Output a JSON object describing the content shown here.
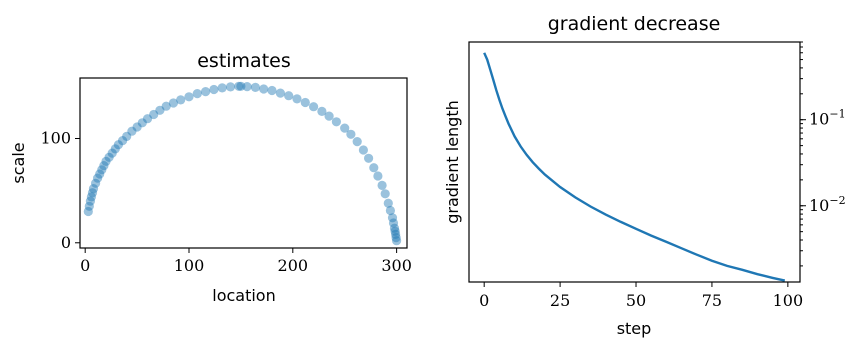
{
  "chart_data": [
    {
      "type": "scatter",
      "title": "estimates",
      "xlabel": "location",
      "ylabel": "scale",
      "xlim": [
        -5,
        310
      ],
      "ylim": [
        -5,
        158
      ],
      "x_ticks": [
        0,
        100,
        200,
        300
      ],
      "x_tick_labels": [
        "0",
        "100",
        "200",
        "300"
      ],
      "y_ticks": [
        0,
        100
      ],
      "y_tick_labels": [
        "0",
        "100"
      ],
      "color": "#1f77b4",
      "marker_alpha": 0.45,
      "grid": false,
      "points_note_free": true,
      "x": [
        3,
        4,
        5,
        6,
        7,
        8,
        10,
        12,
        14,
        16,
        18,
        20,
        23,
        26,
        29,
        32,
        36,
        40,
        45,
        50,
        55,
        60,
        66,
        72,
        78,
        85,
        92,
        100,
        108,
        116,
        124,
        132,
        140,
        148,
        150,
        156,
        164,
        172,
        180,
        188,
        196,
        204,
        212,
        220,
        228,
        235,
        242,
        250,
        256,
        262,
        268,
        273,
        278,
        282,
        286,
        289,
        292,
        294,
        296,
        297,
        298,
        298.5,
        299,
        299.5,
        300
      ],
      "y": [
        30,
        35,
        40,
        44,
        48,
        52,
        57,
        62,
        66,
        70,
        74,
        78,
        82,
        86,
        90,
        94,
        98,
        102,
        107,
        111,
        115,
        119,
        123,
        127,
        131,
        134,
        137,
        140,
        143,
        145,
        147,
        148.5,
        149.5,
        150,
        150,
        149.8,
        149,
        147.5,
        146,
        143.5,
        141,
        138,
        134.5,
        130.5,
        126,
        121.5,
        116,
        110,
        104,
        97,
        89,
        81,
        72,
        64,
        55,
        47,
        38,
        31,
        24,
        19,
        14,
        11,
        8,
        5,
        2
      ]
    },
    {
      "type": "line",
      "title": "gradient decrease",
      "xlabel": "step",
      "ylabel": "gradient length",
      "y_scale": "log",
      "y_axis_side": "right",
      "xlim": [
        -5,
        104
      ],
      "ylim": [
        0.0013,
        0.8
      ],
      "x_ticks": [
        0,
        25,
        50,
        75,
        100
      ],
      "x_tick_labels": [
        "0",
        "25",
        "50",
        "75",
        "100"
      ],
      "y_major_ticks": [
        0.1,
        0.01
      ],
      "y_tick_labels": [
        "10",
        "10"
      ],
      "y_tick_exponents": [
        "−1",
        "−2"
      ],
      "color": "#1f77b4",
      "grid": false,
      "x": [
        0,
        1,
        2,
        3,
        4,
        5,
        6,
        7,
        8,
        10,
        12,
        14,
        16,
        18,
        20,
        25,
        30,
        35,
        40,
        45,
        50,
        55,
        60,
        65,
        70,
        75,
        80,
        85,
        90,
        95,
        99
      ],
      "y": [
        0.6,
        0.5,
        0.38,
        0.29,
        0.22,
        0.17,
        0.135,
        0.11,
        0.09,
        0.064,
        0.049,
        0.039,
        0.032,
        0.027,
        0.023,
        0.0165,
        0.0125,
        0.0098,
        0.0079,
        0.0065,
        0.0054,
        0.0045,
        0.0038,
        0.0032,
        0.0027,
        0.0023,
        0.002,
        0.0018,
        0.0016,
        0.00145,
        0.00135
      ]
    }
  ]
}
